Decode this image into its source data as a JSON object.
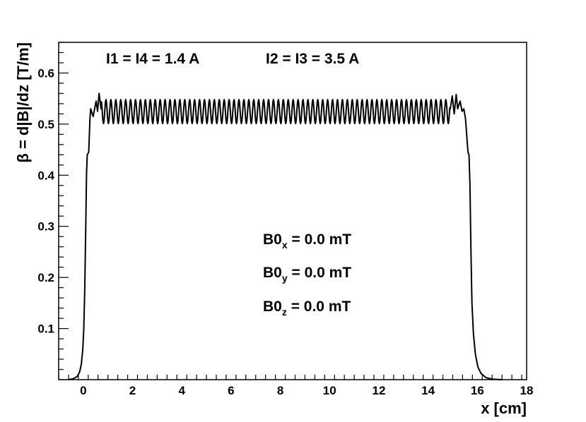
{
  "chart_data": {
    "type": "line",
    "title": "",
    "xlabel": "x [cm]",
    "ylabel": "β = d|B|/dz [T/m]",
    "xlim": [
      -1,
      18
    ],
    "ylim": [
      0,
      0.66
    ],
    "x_ticks": [
      0,
      2,
      4,
      6,
      8,
      10,
      12,
      14,
      16,
      18
    ],
    "y_ticks": [
      0.1,
      0.2,
      0.3,
      0.4,
      0.5,
      0.6
    ],
    "x_tick_labels": [
      "0",
      "2",
      "4",
      "6",
      "8",
      "10",
      "12",
      "14",
      "16",
      "18"
    ],
    "y_tick_labels": [
      "0.1",
      "0.2",
      "0.3",
      "0.4",
      "0.5",
      "0.6"
    ],
    "grid": false,
    "legend": "none",
    "series": [
      {
        "color": "#000000",
        "points": [
          [
            -0.6,
            0.0
          ],
          [
            -0.4,
            0.002
          ],
          [
            -0.25,
            0.006
          ],
          [
            -0.15,
            0.015
          ],
          [
            -0.08,
            0.03
          ],
          [
            -0.02,
            0.06
          ],
          [
            0.02,
            0.1
          ],
          [
            0.06,
            0.18
          ],
          [
            0.1,
            0.3
          ],
          [
            0.13,
            0.4
          ],
          [
            0.16,
            0.44
          ],
          [
            0.22,
            0.445
          ],
          [
            0.27,
            0.51
          ],
          [
            0.3,
            0.53
          ],
          [
            0.4,
            0.515
          ],
          [
            0.52,
            0.545
          ],
          [
            0.58,
            0.525
          ],
          [
            0.64,
            0.56
          ],
          [
            0.72,
            0.53
          ],
          [
            14.9,
            0.53
          ],
          [
            14.98,
            0.555
          ],
          [
            15.06,
            0.52
          ],
          [
            15.14,
            0.558
          ],
          [
            15.2,
            0.53
          ],
          [
            15.3,
            0.545
          ],
          [
            15.38,
            0.525
          ],
          [
            15.45,
            0.53
          ],
          [
            15.52,
            0.51
          ],
          [
            15.58,
            0.47
          ],
          [
            15.62,
            0.445
          ],
          [
            15.66,
            0.44
          ],
          [
            15.7,
            0.38
          ],
          [
            15.74,
            0.25
          ],
          [
            15.78,
            0.15
          ],
          [
            15.84,
            0.09
          ],
          [
            15.92,
            0.05
          ],
          [
            16.02,
            0.025
          ],
          [
            16.15,
            0.012
          ],
          [
            16.35,
            0.004
          ],
          [
            16.6,
            0.001
          ],
          [
            17.0,
            0.0
          ]
        ],
        "plateau_oscillation": {
          "from_x": 0.72,
          "to_x": 14.9,
          "center": 0.5245,
          "amplitude": 0.0235,
          "period": 0.2
        }
      }
    ],
    "annotations": [
      {
        "text": "I1 = I4 = 1.4 A"
      },
      {
        "text": "I2 = I3 = 3.5 A"
      },
      {
        "text": "B0",
        "subscript": "x",
        "suffix": " = 0.0 mT"
      },
      {
        "text": "B0",
        "subscript": "y",
        "suffix": " = 0.0 mT"
      },
      {
        "text": "B0",
        "subscript": "z",
        "suffix": " = 0.0 mT"
      }
    ]
  }
}
